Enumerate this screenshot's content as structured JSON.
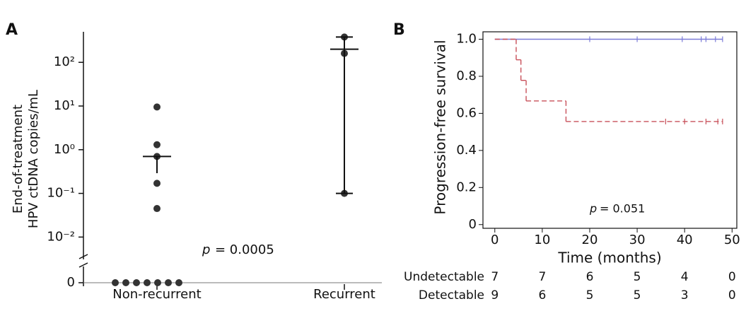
{
  "chart_data": [
    {
      "type": "dotplot",
      "panel": "A",
      "ylabel": [
        "End-of-treatment",
        "HPV ctDNA copies/mL"
      ],
      "categories": [
        "Non-recurrent",
        "Recurrent"
      ],
      "points": [
        [
          9.5,
          1.3,
          0.7,
          0.17,
          0.045,
          0,
          0,
          0,
          0,
          0,
          0,
          0
        ],
        [
          380,
          160,
          0.1
        ]
      ],
      "mean": [
        0.7,
        200
      ],
      "lower": [
        0.29,
        0.1
      ],
      "upper": [
        0.7,
        380
      ],
      "color": "#333333",
      "log_scale": true,
      "zero_break": true,
      "ylim": [
        0.004,
        500
      ],
      "yticks": [
        {
          "value": 100,
          "label": "10²"
        },
        {
          "value": 10,
          "label": "10¹"
        },
        {
          "value": 1,
          "label": "10⁰"
        },
        {
          "value": 0.1,
          "label": "10⁻¹"
        },
        {
          "value": 0.01,
          "label": "10⁻²"
        },
        0
      ],
      "annotation_symbol": "p",
      "annotation": "= 0.0005"
    },
    {
      "type": "km",
      "panel": "B",
      "ylabel": "Progression-free survival",
      "xlabel": "Time (months)",
      "series": [
        {
          "name": "Undetectable",
          "color": "#7b7bd8",
          "dashed": false,
          "x": [
            0
          ],
          "values": [
            1
          ],
          "censor_x": [
            20,
            30,
            39.5,
            43.5,
            44.5,
            46.5,
            48
          ]
        },
        {
          "name": "Detectable",
          "color": "#c8505a",
          "dashed": true,
          "x": [
            0,
            4.5,
            5.5,
            6.6,
            15
          ],
          "values": [
            1,
            0.889,
            0.778,
            0.667,
            0.556
          ],
          "censor_x": [
            36,
            40,
            44.5,
            47,
            48
          ]
        }
      ],
      "xlim": [
        -2.5,
        51
      ],
      "xticks": [
        0,
        10,
        20,
        30,
        40,
        50
      ],
      "ylim": [
        -0.02,
        1.04
      ],
      "yticks": [
        0,
        0.2,
        0.4,
        0.6,
        0.8,
        {
          "value": 1,
          "label": "1.0"
        }
      ],
      "risk_table": [
        [
          7,
          7,
          6,
          5,
          4,
          0
        ],
        [
          9,
          6,
          5,
          5,
          3,
          0
        ]
      ],
      "annotation_symbol": "p",
      "annotation": "= 0.051"
    }
  ]
}
